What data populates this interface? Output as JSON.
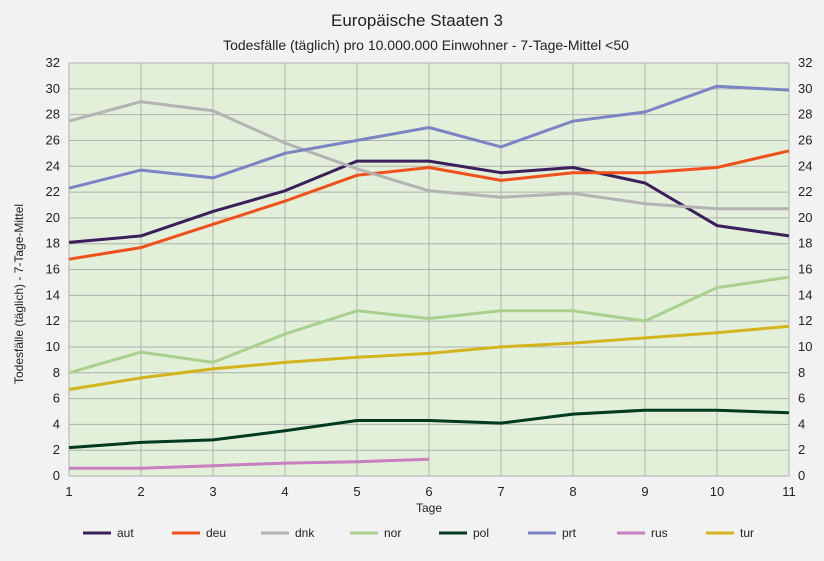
{
  "chart_data": {
    "type": "line",
    "title": "Europäische Staaten 3",
    "subtitle": "Todesfälle (täglich) pro 10.000.000 Einwohner - 7-Tage-Mittel <50",
    "xlabel": "Tage",
    "ylabel": "Todesfälle (täglich) - 7-Tage-Mittel",
    "x": [
      1,
      2,
      3,
      4,
      5,
      6,
      7,
      8,
      9,
      10,
      11
    ],
    "ylim": [
      0,
      32
    ],
    "yticks": [
      0,
      2,
      4,
      6,
      8,
      10,
      12,
      14,
      16,
      18,
      20,
      22,
      24,
      26,
      28,
      30,
      32
    ],
    "grid": true,
    "plot_background": "#e2efd9",
    "legend_position": "bottom",
    "series": [
      {
        "name": "aut",
        "color": "#3b1f5c",
        "values": [
          18.1,
          18.6,
          20.5,
          22.1,
          24.4,
          24.4,
          23.5,
          23.9,
          22.7,
          19.4,
          18.6
        ]
      },
      {
        "name": "deu",
        "color": "#f0501a",
        "values": [
          16.8,
          17.7,
          19.5,
          21.3,
          23.3,
          23.9,
          22.9,
          23.5,
          23.5,
          23.9,
          25.2
        ]
      },
      {
        "name": "dnk",
        "color": "#b3b3b3",
        "values": [
          27.5,
          29.0,
          28.3,
          25.8,
          23.8,
          22.1,
          21.6,
          21.9,
          21.1,
          20.7,
          20.7
        ]
      },
      {
        "name": "nor",
        "color": "#a9d18e",
        "values": [
          8.0,
          9.6,
          8.8,
          11.0,
          12.8,
          12.2,
          12.8,
          12.8,
          12.0,
          14.6,
          15.4
        ]
      },
      {
        "name": "pol",
        "color": "#003a1f",
        "values": [
          2.2,
          2.6,
          2.8,
          3.5,
          4.3,
          4.3,
          4.1,
          4.8,
          5.1,
          5.1,
          4.9
        ]
      },
      {
        "name": "prt",
        "color": "#7b84c4",
        "values": [
          22.3,
          23.7,
          23.1,
          25.0,
          26.0,
          27.0,
          25.5,
          27.5,
          28.2,
          30.2,
          29.9
        ]
      },
      {
        "name": "rus",
        "color": "#c77fc0",
        "values": [
          0.6,
          0.6,
          0.8,
          1.0,
          1.1,
          1.3,
          null,
          null,
          null,
          null,
          null
        ]
      },
      {
        "name": "tur",
        "color": "#d4b41c",
        "values": [
          6.7,
          7.6,
          8.3,
          8.8,
          9.2,
          9.5,
          10.0,
          10.3,
          10.7,
          11.1,
          11.6
        ]
      }
    ]
  }
}
